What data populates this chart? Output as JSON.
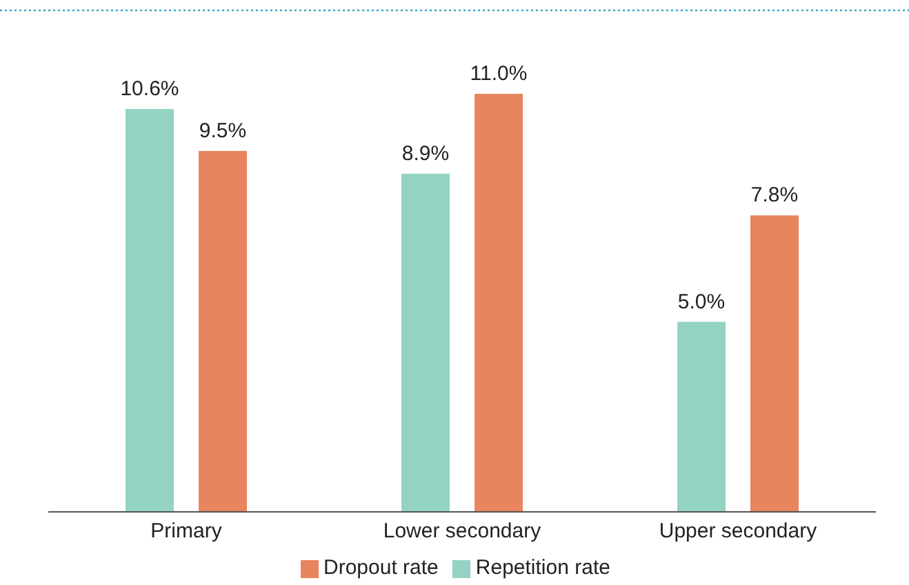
{
  "chart_data": {
    "type": "bar",
    "categories": [
      "Primary",
      "Lower secondary",
      "Upper secondary"
    ],
    "series": [
      {
        "name": "Repetition rate",
        "color": "#93d3c4",
        "values": [
          10.6,
          8.9,
          5.0
        ],
        "value_labels": [
          "10.6%",
          "8.9%",
          "5.0%"
        ]
      },
      {
        "name": "Dropout rate",
        "color": "#e8845e",
        "values": [
          9.5,
          11.0,
          7.8
        ],
        "value_labels": [
          "9.5%",
          "11.0%",
          "7.8%"
        ]
      }
    ],
    "legend": "bottom",
    "grid": false
  }
}
